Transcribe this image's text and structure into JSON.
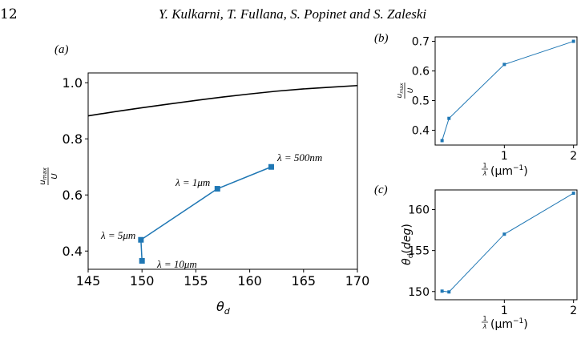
{
  "header": {
    "page_number": "12",
    "authors": "Y. Kulkarni, T. Fullana, S. Popinet and S. Zaleski"
  },
  "colors": {
    "series": "#1f77b4",
    "curve": "#000000"
  },
  "chart_data": [
    {
      "panel": "(a)",
      "type": "line",
      "xlabel": "θd",
      "ylabel": "umax/U",
      "xlim": [
        145,
        170
      ],
      "ylim": [
        0.335,
        1.035
      ],
      "xticks": [
        "145",
        "150",
        "155",
        "160",
        "165",
        "170"
      ],
      "yticks": [
        "0.4",
        "0.6",
        "0.8",
        "1.0"
      ],
      "grid": false,
      "series": [
        {
          "style": "black-curve",
          "x": [
            145,
            147.5,
            150,
            152.5,
            155,
            157.5,
            160,
            162.5,
            165,
            167.5,
            170
          ],
          "y": [
            0.882,
            0.897,
            0.911,
            0.924,
            0.937,
            0.949,
            0.96,
            0.97,
            0.978,
            0.984,
            0.99
          ]
        },
        {
          "style": "blue-markers",
          "x": [
            150,
            149.9,
            157,
            162
          ],
          "y": [
            0.365,
            0.44,
            0.622,
            0.7
          ]
        }
      ],
      "annotations": [
        "λ = 500nm",
        "λ = 1μm",
        "λ = 5μm",
        "λ = 10μm"
      ]
    },
    {
      "panel": "(b)",
      "type": "line",
      "xlabel": "1/λ (μm⁻¹)",
      "ylabel": "umax/U",
      "xlim": [
        0.0,
        2.05
      ],
      "ylim": [
        0.35,
        0.715
      ],
      "xticks": [
        "1",
        "2"
      ],
      "yticks": [
        "0.4",
        "0.5",
        "0.6",
        "0.7"
      ],
      "series": [
        {
          "x": [
            0.1,
            0.2,
            1.0,
            2.0
          ],
          "y": [
            0.365,
            0.44,
            0.622,
            0.7
          ]
        }
      ]
    },
    {
      "panel": "(c)",
      "type": "line",
      "xlabel": "1/λ (μm⁻¹)",
      "ylabel": "θd(deg)",
      "xlim": [
        0.0,
        2.05
      ],
      "ylim": [
        149.0,
        162.4
      ],
      "xticks": [
        "1",
        "2"
      ],
      "yticks": [
        "150",
        "155",
        "160"
      ],
      "series": [
        {
          "x": [
            0.1,
            0.2,
            1.0,
            2.0
          ],
          "y": [
            150.05,
            149.95,
            157.0,
            162.0
          ]
        }
      ]
    }
  ]
}
